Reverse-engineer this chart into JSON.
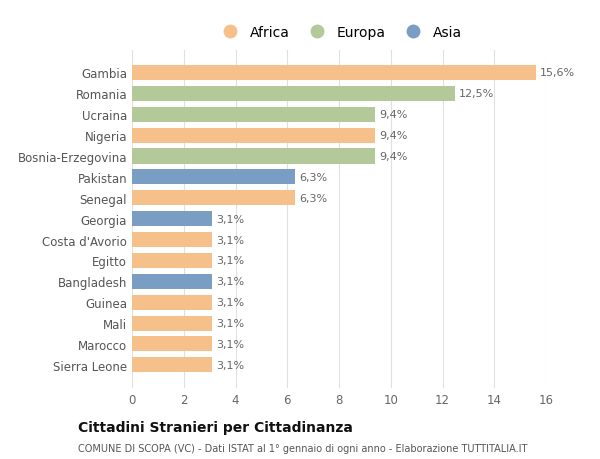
{
  "categories": [
    "Sierra Leone",
    "Marocco",
    "Mali",
    "Guinea",
    "Bangladesh",
    "Egitto",
    "Costa d'Avorio",
    "Georgia",
    "Senegal",
    "Pakistan",
    "Bosnia-Erzegovina",
    "Nigeria",
    "Ucraina",
    "Romania",
    "Gambia"
  ],
  "values": [
    3.1,
    3.1,
    3.1,
    3.1,
    3.1,
    3.1,
    3.1,
    3.1,
    6.3,
    6.3,
    9.4,
    9.4,
    9.4,
    12.5,
    15.6
  ],
  "colors": [
    "#F5C08A",
    "#F5C08A",
    "#F5C08A",
    "#F5C08A",
    "#7A9DC4",
    "#F5C08A",
    "#F5C08A",
    "#7A9DC4",
    "#F5C08A",
    "#7A9DC4",
    "#B3C99A",
    "#F5C08A",
    "#B3C99A",
    "#B3C99A",
    "#F5C08A"
  ],
  "labels": [
    "3,1%",
    "3,1%",
    "3,1%",
    "3,1%",
    "3,1%",
    "3,1%",
    "3,1%",
    "3,1%",
    "6,3%",
    "6,3%",
    "9,4%",
    "9,4%",
    "9,4%",
    "12,5%",
    "15,6%"
  ],
  "legend_labels": [
    "Africa",
    "Europa",
    "Asia"
  ],
  "legend_colors": [
    "#F5C08A",
    "#B3C99A",
    "#7A9DC4"
  ],
  "title": "Cittadini Stranieri per Cittadinanza",
  "subtitle": "COMUNE DI SCOPA (VC) - Dati ISTAT al 1° gennaio di ogni anno - Elaborazione TUTTITALIA.IT",
  "xlim": [
    0,
    16
  ],
  "xticks": [
    0,
    2,
    4,
    6,
    8,
    10,
    12,
    14,
    16
  ],
  "background_color": "#ffffff",
  "bar_height": 0.72
}
